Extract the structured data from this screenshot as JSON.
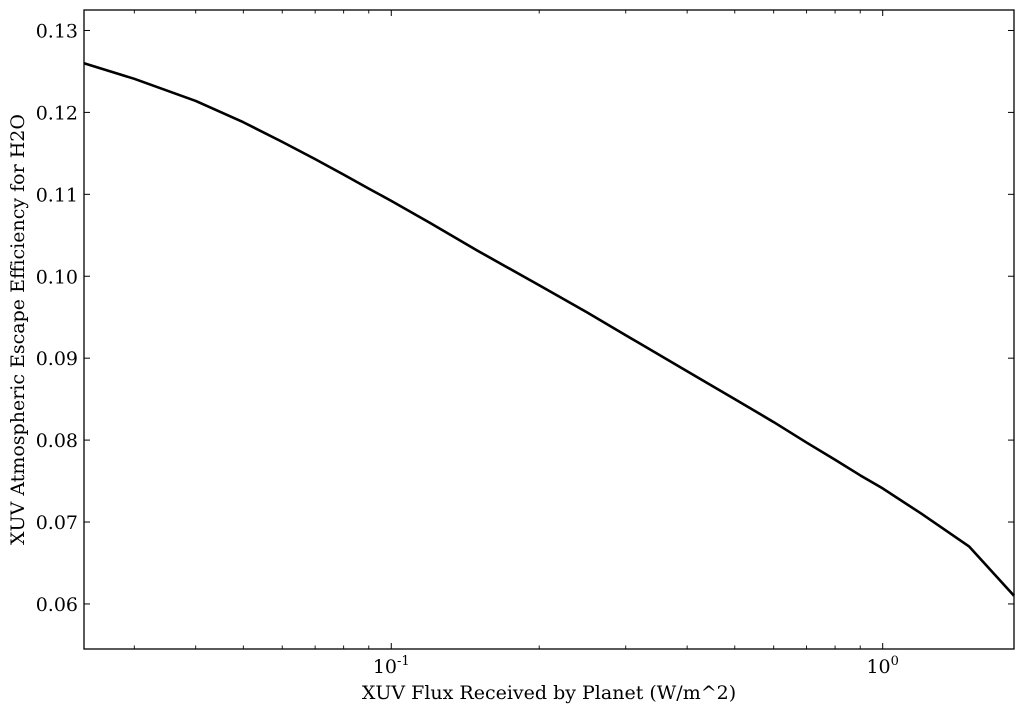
{
  "chart_data": {
    "type": "line",
    "title": "",
    "xlabel": "XUV Flux Received by Planet (W/m^2)",
    "ylabel": "XUV Atmospheric Escape Efficiency for H2O",
    "xscale": "log",
    "xlim": [
      0.0237,
      1.85
    ],
    "ylim": [
      0.0545,
      0.1325
    ],
    "grid": false,
    "legend": "none",
    "x_major_ticks": [
      {
        "value": 0.1,
        "base": "10",
        "exp": "-1"
      },
      {
        "value": 1,
        "base": "10",
        "exp": "0"
      }
    ],
    "y_ticks": [
      {
        "value": 0.06,
        "label": "0.06"
      },
      {
        "value": 0.07,
        "label": "0.07"
      },
      {
        "value": 0.08,
        "label": "0.08"
      },
      {
        "value": 0.09,
        "label": "0.09"
      },
      {
        "value": 0.1,
        "label": "0.10"
      },
      {
        "value": 0.11,
        "label": "0.11"
      },
      {
        "value": 0.12,
        "label": "0.12"
      },
      {
        "value": 0.13,
        "label": "0.13"
      }
    ],
    "series": [
      {
        "color": "#000000",
        "x": [
          0.0237,
          0.03,
          0.04,
          0.05,
          0.06,
          0.07,
          0.08,
          0.09,
          0.1,
          0.12,
          0.15,
          0.2,
          0.25,
          0.3,
          0.4,
          0.5,
          0.6,
          0.7,
          0.8,
          0.9,
          1.0,
          1.2,
          1.5,
          1.85
        ],
        "y": [
          0.126,
          0.1241,
          0.1214,
          0.1188,
          0.1164,
          0.1143,
          0.1124,
          0.1107,
          0.1092,
          0.1065,
          0.1031,
          0.0989,
          0.0956,
          0.0928,
          0.0884,
          0.085,
          0.0822,
          0.0797,
          0.0776,
          0.0757,
          0.0741,
          0.071,
          0.067,
          0.061
        ]
      }
    ]
  }
}
